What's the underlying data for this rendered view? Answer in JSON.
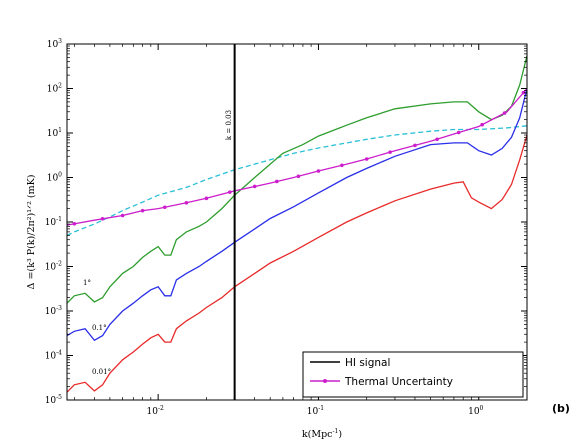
{
  "chart_data": {
    "type": "line",
    "xlabel": "k(Mpc",
    "xlabel_sup": "-1",
    "xlabel_close": ")",
    "ylabel": "Δ =(k³ P(k)/2π²)¹ᐟ² (mK)",
    "x_scale": "log",
    "y_scale": "log",
    "xlim": [
      0.0027,
      2.0
    ],
    "ylim": [
      1e-05,
      1000
    ],
    "x_ticks": [
      {
        "base": "10",
        "exp": "-2",
        "value": 0.01
      },
      {
        "base": "10",
        "exp": "-1",
        "value": 0.1
      },
      {
        "base": "10",
        "exp": "0",
        "value": 1
      }
    ],
    "y_ticks": [
      {
        "base": "10",
        "exp": "-5",
        "value": 1e-05
      },
      {
        "base": "10",
        "exp": "-4",
        "value": 0.0001
      },
      {
        "base": "10",
        "exp": "-3",
        "value": 0.001
      },
      {
        "base": "10",
        "exp": "-2",
        "value": 0.01
      },
      {
        "base": "10",
        "exp": "-1",
        "value": 0.1
      },
      {
        "base": "10",
        "exp": "0",
        "value": 1
      },
      {
        "base": "10",
        "exp": "1",
        "value": 10
      },
      {
        "base": "10",
        "exp": "2",
        "value": 100
      },
      {
        "base": "10",
        "exp": "3",
        "value": 1000
      }
    ],
    "vline": {
      "x": 0.03,
      "label": "k = 0.03"
    },
    "series": [
      {
        "color": "#2e9e2e",
        "label": "1°",
        "points": [
          [
            0.0027,
            0.0015
          ],
          [
            0.003,
            0.0022
          ],
          [
            0.0035,
            0.0025
          ],
          [
            0.004,
            0.0016
          ],
          [
            0.0045,
            0.002
          ],
          [
            0.005,
            0.0035
          ],
          [
            0.006,
            0.007
          ],
          [
            0.007,
            0.01
          ],
          [
            0.008,
            0.016
          ],
          [
            0.009,
            0.022
          ],
          [
            0.01,
            0.028
          ],
          [
            0.011,
            0.018
          ],
          [
            0.012,
            0.018
          ],
          [
            0.013,
            0.04
          ],
          [
            0.015,
            0.06
          ],
          [
            0.018,
            0.08
          ],
          [
            0.02,
            0.1
          ],
          [
            0.025,
            0.2
          ],
          [
            0.03,
            0.4
          ],
          [
            0.04,
            1.0
          ],
          [
            0.05,
            2.0
          ],
          [
            0.06,
            3.5
          ],
          [
            0.08,
            5.5
          ],
          [
            0.1,
            8.5
          ],
          [
            0.15,
            15
          ],
          [
            0.2,
            22
          ],
          [
            0.3,
            35
          ],
          [
            0.5,
            45
          ],
          [
            0.7,
            50
          ],
          [
            0.85,
            50
          ],
          [
            1.0,
            30
          ],
          [
            1.2,
            20
          ],
          [
            1.4,
            25
          ],
          [
            1.6,
            40
          ],
          [
            1.8,
            120
          ],
          [
            2.0,
            550
          ]
        ]
      },
      {
        "color": "#2a2ee8",
        "label": "0.1°",
        "points": [
          [
            0.0027,
            0.00028
          ],
          [
            0.003,
            0.00035
          ],
          [
            0.0035,
            0.0004
          ],
          [
            0.004,
            0.00022
          ],
          [
            0.0045,
            0.00028
          ],
          [
            0.005,
            0.0005
          ],
          [
            0.006,
            0.001
          ],
          [
            0.007,
            0.0015
          ],
          [
            0.008,
            0.0022
          ],
          [
            0.009,
            0.003
          ],
          [
            0.01,
            0.0035
          ],
          [
            0.011,
            0.0022
          ],
          [
            0.012,
            0.0022
          ],
          [
            0.013,
            0.005
          ],
          [
            0.015,
            0.007
          ],
          [
            0.018,
            0.01
          ],
          [
            0.02,
            0.013
          ],
          [
            0.025,
            0.022
          ],
          [
            0.03,
            0.035
          ],
          [
            0.04,
            0.07
          ],
          [
            0.05,
            0.12
          ],
          [
            0.07,
            0.22
          ],
          [
            0.1,
            0.45
          ],
          [
            0.15,
            1.0
          ],
          [
            0.2,
            1.6
          ],
          [
            0.3,
            3.0
          ],
          [
            0.5,
            5.5
          ],
          [
            0.7,
            6.0
          ],
          [
            0.85,
            6.0
          ],
          [
            1.0,
            4.0
          ],
          [
            1.2,
            3.2
          ],
          [
            1.4,
            4.5
          ],
          [
            1.6,
            8
          ],
          [
            1.8,
            22
          ],
          [
            2.0,
            100
          ]
        ]
      },
      {
        "color": "#e82a2a",
        "label": "0.01°",
        "points": [
          [
            0.0027,
            1.5e-05
          ],
          [
            0.003,
            2.2e-05
          ],
          [
            0.0035,
            2.5e-05
          ],
          [
            0.004,
            1.6e-05
          ],
          [
            0.0045,
            2.2e-05
          ],
          [
            0.005,
            4e-05
          ],
          [
            0.006,
            8e-05
          ],
          [
            0.007,
            0.00012
          ],
          [
            0.008,
            0.00018
          ],
          [
            0.009,
            0.00025
          ],
          [
            0.01,
            0.0003
          ],
          [
            0.011,
            0.0002
          ],
          [
            0.012,
            0.0002
          ],
          [
            0.013,
            0.0004
          ],
          [
            0.015,
            0.0006
          ],
          [
            0.018,
            0.0009
          ],
          [
            0.02,
            0.0012
          ],
          [
            0.025,
            0.002
          ],
          [
            0.03,
            0.0035
          ],
          [
            0.04,
            0.007
          ],
          [
            0.05,
            0.012
          ],
          [
            0.07,
            0.022
          ],
          [
            0.1,
            0.045
          ],
          [
            0.15,
            0.1
          ],
          [
            0.2,
            0.16
          ],
          [
            0.3,
            0.3
          ],
          [
            0.5,
            0.55
          ],
          [
            0.7,
            0.75
          ],
          [
            0.8,
            0.8
          ],
          [
            0.9,
            0.35
          ],
          [
            1.0,
            0.28
          ],
          [
            1.2,
            0.2
          ],
          [
            1.4,
            0.32
          ],
          [
            1.6,
            0.7
          ],
          [
            1.8,
            2.5
          ],
          [
            2.0,
            9
          ]
        ]
      }
    ],
    "dashed_series": {
      "color": "#29c0d6",
      "points": [
        [
          0.0027,
          0.05
        ],
        [
          0.003,
          0.06
        ],
        [
          0.004,
          0.09
        ],
        [
          0.005,
          0.13
        ],
        [
          0.006,
          0.18
        ],
        [
          0.008,
          0.28
        ],
        [
          0.01,
          0.4
        ],
        [
          0.015,
          0.6
        ],
        [
          0.02,
          0.9
        ],
        [
          0.03,
          1.5
        ],
        [
          0.05,
          2.5
        ],
        [
          0.07,
          3.5
        ],
        [
          0.1,
          4.6
        ],
        [
          0.15,
          6.0
        ],
        [
          0.2,
          7.2
        ],
        [
          0.3,
          9.0
        ],
        [
          0.5,
          11.0
        ],
        [
          0.7,
          12.0
        ],
        [
          1.0,
          12.0
        ],
        [
          1.5,
          13.0
        ],
        [
          2.0,
          14.5
        ]
      ]
    },
    "thermal_series": {
      "color": "#cc1ecc",
      "points": [
        [
          0.0027,
          0.085
        ],
        [
          0.004,
          0.11
        ],
        [
          0.006,
          0.14
        ],
        [
          0.008,
          0.18
        ],
        [
          0.01,
          0.2
        ],
        [
          0.015,
          0.27
        ],
        [
          0.02,
          0.34
        ],
        [
          0.03,
          0.5
        ],
        [
          0.05,
          0.75
        ],
        [
          0.07,
          1.0
        ],
        [
          0.1,
          1.4
        ],
        [
          0.15,
          2.0
        ],
        [
          0.2,
          2.6
        ],
        [
          0.3,
          4.0
        ],
        [
          0.5,
          6.5
        ],
        [
          0.7,
          9.5
        ],
        [
          1.0,
          14
        ],
        [
          1.5,
          30
        ],
        [
          2.0,
          100
        ]
      ],
      "marker_x": [
        0.003,
        0.0045,
        0.006,
        0.008,
        0.011,
        0.015,
        0.02,
        0.028,
        0.04,
        0.055,
        0.075,
        0.1,
        0.14,
        0.2,
        0.28,
        0.4,
        0.55,
        0.75,
        1.05,
        1.45,
        1.9
      ]
    },
    "legend": {
      "position": "lower-right",
      "entries": [
        {
          "label": "HI signal",
          "color": "#000000",
          "marker": false
        },
        {
          "label": "Thermal Uncertainty",
          "color": "#cc1ecc",
          "marker": true
        }
      ]
    },
    "panel_label": "(b)"
  }
}
